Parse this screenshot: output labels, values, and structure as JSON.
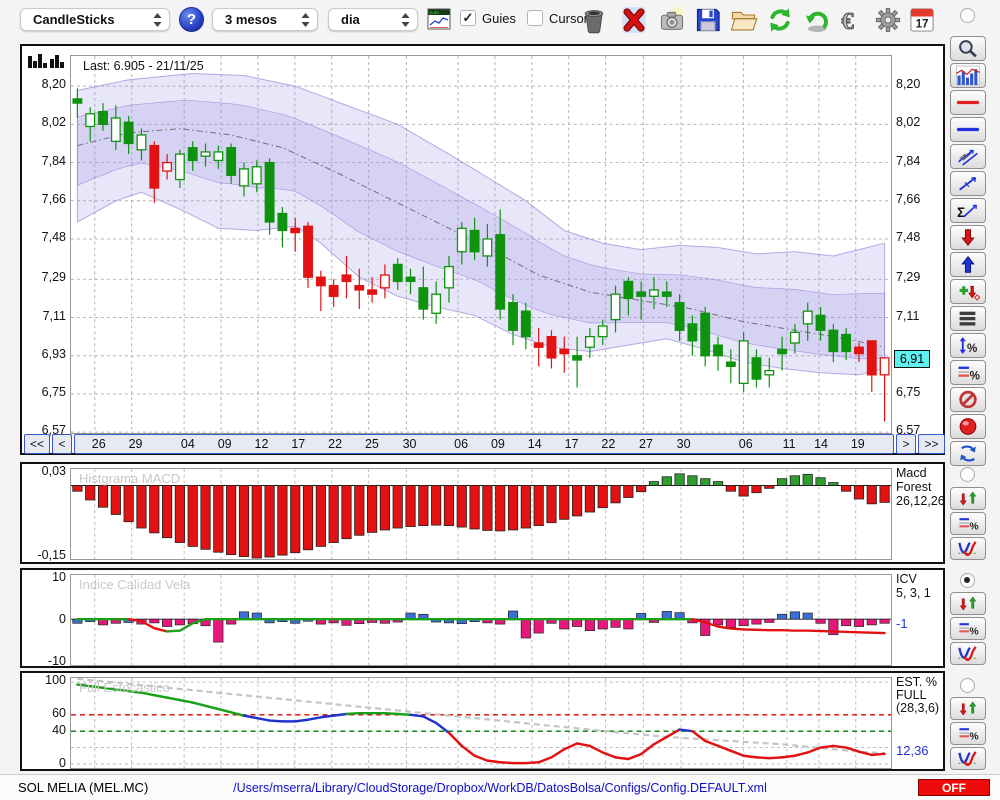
{
  "toolbar": {
    "chart_type": "CandleSticks",
    "help": "?",
    "period": "3 mesos",
    "timeframe": "dia",
    "guies": "Guies",
    "cursor": "Cursor"
  },
  "main_chart": {
    "last_label": "Last: 6.905 - 21/11/25",
    "y_labels": [
      "8,20",
      "8,02",
      "7,84",
      "7,66",
      "7,48",
      "7,29",
      "7,11",
      "6,93",
      "6,75",
      "6,57"
    ],
    "y_values": [
      8.2,
      8.02,
      7.84,
      7.66,
      7.48,
      7.29,
      7.11,
      6.93,
      6.75,
      6.57
    ],
    "badge": "6,91",
    "badge_value": 6.91,
    "nav": {
      "first": "<<",
      "prev": "<",
      "next": ">",
      "last": ">>"
    },
    "dates": [
      [
        "26",
        2.9
      ],
      [
        "29",
        7.4
      ],
      [
        "04",
        13.8
      ],
      [
        "09",
        18.3
      ],
      [
        "12",
        22.8
      ],
      [
        "17",
        27.3
      ],
      [
        "22",
        31.8
      ],
      [
        "25",
        36.3
      ],
      [
        "30",
        40.9
      ],
      [
        "06",
        47.2
      ],
      [
        "09",
        51.7
      ],
      [
        "14",
        56.2
      ],
      [
        "17",
        60.7
      ],
      [
        "22",
        65.2
      ],
      [
        "27",
        69.8
      ],
      [
        "30",
        74.4
      ],
      [
        "06",
        82.0
      ],
      [
        "11",
        87.3
      ],
      [
        "14",
        91.2
      ],
      [
        "19",
        95.7
      ]
    ]
  },
  "panels": {
    "macd": {
      "title": "Histgrama MACD",
      "y_top": "0,03",
      "y_bottom": "-0,15",
      "right": [
        "Macd",
        "Forest",
        "26,12,26"
      ]
    },
    "icv": {
      "title": "Indice Calidad Vela",
      "y_labels": [
        "10",
        "0",
        "-10"
      ],
      "right": [
        "ICV",
        "5, 3, 1"
      ],
      "value": "-1"
    },
    "est": {
      "title": "Full Estocastico",
      "y_labels": [
        "100",
        "60",
        "40",
        "0"
      ],
      "right": [
        "EST. %",
        "FULL",
        "(28,3,6)"
      ],
      "value": "12,36"
    }
  },
  "statusbar": {
    "symbol": "SOL MELIA (MEL.MC)",
    "path": "/Users/mserra/Library/CloudStorage/Dropbox/WorkDB/DatosBolsa/Configs/Config.DEFAULT.xml",
    "off": "OFF"
  },
  "colors": {
    "candle_green": "#0f930f",
    "candle_red": "#e31212",
    "band_fill": "rgba(152,142,226,0.22)",
    "band_edge": "rgba(122,112,205,0.55)",
    "macd_red": "#e31212",
    "macd_green": "#2e9e2e",
    "icv_blue": "#3b6fd4",
    "icv_magenta": "#e6187c",
    "line_green": "#18a018",
    "line_red": "#e31212",
    "line_blue": "#2233cc",
    "signal_gray": "#c4c4c4",
    "guide_red": "#dd0000",
    "guide_green": "#007700",
    "badge_cyan": "#5ff0f0",
    "value_blue": "#2233dd"
  },
  "chart_data": {
    "main": {
      "type": "candlestick",
      "title": "Last: 6.905 - 21/11/25",
      "ylim": [
        6.566,
        8.342
      ],
      "y_ticks": [
        8.2,
        8.02,
        7.84,
        7.66,
        7.48,
        7.29,
        7.11,
        6.93,
        6.75,
        6.57
      ],
      "candles": [
        [
          8.12,
          8.14,
          8.05,
          8.19,
          "gs"
        ],
        [
          8.01,
          8.07,
          7.94,
          8.1,
          "gh"
        ],
        [
          8.02,
          8.08,
          7.99,
          8.12,
          "gs"
        ],
        [
          7.94,
          8.05,
          7.9,
          8.11,
          "gh"
        ],
        [
          7.93,
          8.03,
          7.88,
          8.06,
          "gs"
        ],
        [
          7.9,
          7.97,
          7.85,
          8.0,
          "gh"
        ],
        [
          7.72,
          7.92,
          7.65,
          7.94,
          "rs"
        ],
        [
          7.8,
          7.84,
          7.76,
          7.88,
          "rh"
        ],
        [
          7.76,
          7.88,
          7.72,
          7.9,
          "gh"
        ],
        [
          7.85,
          7.91,
          7.8,
          7.94,
          "gs"
        ],
        [
          7.87,
          7.89,
          7.82,
          7.93,
          "gh"
        ],
        [
          7.85,
          7.89,
          7.81,
          7.92,
          "gh"
        ],
        [
          7.78,
          7.91,
          7.74,
          7.93,
          "gs"
        ],
        [
          7.73,
          7.81,
          7.68,
          7.84,
          "gh"
        ],
        [
          7.74,
          7.82,
          7.7,
          7.85,
          "gh"
        ],
        [
          7.56,
          7.84,
          7.5,
          7.86,
          "gs"
        ],
        [
          7.52,
          7.6,
          7.44,
          7.63,
          "gs"
        ],
        [
          7.51,
          7.53,
          7.42,
          7.58,
          "rs"
        ],
        [
          7.3,
          7.54,
          7.25,
          7.56,
          "rs"
        ],
        [
          7.26,
          7.3,
          7.14,
          7.33,
          "rs"
        ],
        [
          7.21,
          7.26,
          7.16,
          7.29,
          "rs"
        ],
        [
          7.28,
          7.31,
          7.2,
          7.4,
          "rs"
        ],
        [
          7.24,
          7.26,
          7.15,
          7.34,
          "rs"
        ],
        [
          7.22,
          7.24,
          7.18,
          7.3,
          "rs"
        ],
        [
          7.25,
          7.31,
          7.2,
          7.36,
          "rh"
        ],
        [
          7.28,
          7.36,
          7.24,
          7.39,
          "gs"
        ],
        [
          7.28,
          7.3,
          7.22,
          7.34,
          "gs"
        ],
        [
          7.15,
          7.25,
          7.1,
          7.35,
          "gs"
        ],
        [
          7.13,
          7.22,
          7.08,
          7.28,
          "gh"
        ],
        [
          7.25,
          7.35,
          7.18,
          7.4,
          "gh"
        ],
        [
          7.42,
          7.53,
          7.36,
          7.56,
          "gh"
        ],
        [
          7.42,
          7.52,
          7.38,
          7.58,
          "gs"
        ],
        [
          7.4,
          7.48,
          7.35,
          7.55,
          "gh"
        ],
        [
          7.15,
          7.5,
          7.1,
          7.62,
          "gs"
        ],
        [
          7.05,
          7.18,
          6.98,
          7.22,
          "gs"
        ],
        [
          7.02,
          7.14,
          6.96,
          7.18,
          "gs"
        ],
        [
          6.97,
          6.99,
          6.88,
          7.06,
          "rs"
        ],
        [
          6.92,
          7.02,
          6.87,
          7.05,
          "rs"
        ],
        [
          6.94,
          6.96,
          6.85,
          7.02,
          "rs"
        ],
        [
          6.91,
          6.93,
          6.78,
          7.02,
          "gs"
        ],
        [
          6.97,
          7.02,
          6.92,
          7.06,
          "gh"
        ],
        [
          7.02,
          7.07,
          6.98,
          7.1,
          "gh"
        ],
        [
          7.1,
          7.22,
          7.04,
          7.26,
          "gh"
        ],
        [
          7.2,
          7.28,
          7.12,
          7.3,
          "gs"
        ],
        [
          7.21,
          7.23,
          7.1,
          7.28,
          "gs"
        ],
        [
          7.21,
          7.24,
          7.15,
          7.3,
          "gh"
        ],
        [
          7.21,
          7.23,
          7.16,
          7.28,
          "gs"
        ],
        [
          7.05,
          7.18,
          7.0,
          7.22,
          "gs"
        ],
        [
          7.0,
          7.08,
          6.93,
          7.12,
          "gs"
        ],
        [
          6.93,
          7.13,
          6.88,
          7.16,
          "gs"
        ],
        [
          6.93,
          6.98,
          6.86,
          7.02,
          "gs"
        ],
        [
          6.88,
          6.9,
          6.8,
          6.96,
          "gs"
        ],
        [
          6.8,
          7.0,
          6.76,
          7.04,
          "gh"
        ],
        [
          6.82,
          6.92,
          6.78,
          6.96,
          "gs"
        ],
        [
          6.84,
          6.86,
          6.78,
          6.92,
          "gh"
        ],
        [
          6.94,
          6.96,
          6.86,
          7.02,
          "gs"
        ],
        [
          6.99,
          7.04,
          6.94,
          7.08,
          "gh"
        ],
        [
          7.08,
          7.14,
          7.0,
          7.18,
          "gh"
        ],
        [
          7.05,
          7.12,
          7.0,
          7.16,
          "gs"
        ],
        [
          6.95,
          7.05,
          6.9,
          7.08,
          "gs"
        ],
        [
          6.95,
          7.03,
          6.91,
          7.06,
          "gs"
        ],
        [
          6.94,
          6.97,
          6.9,
          6.99,
          "rs"
        ],
        [
          6.84,
          7.0,
          6.76,
          7.0,
          "rs"
        ],
        [
          6.84,
          6.92,
          6.62,
          6.92,
          "rh"
        ]
      ],
      "band_upper_pts": [
        [
          0,
          8.18
        ],
        [
          4,
          8.23
        ],
        [
          9,
          8.26
        ],
        [
          13,
          8.25
        ],
        [
          17,
          8.2
        ],
        [
          21,
          8.11
        ],
        [
          25,
          8.02
        ],
        [
          29,
          7.88
        ],
        [
          32,
          7.77
        ],
        [
          35,
          7.66
        ],
        [
          38,
          7.52
        ],
        [
          41,
          7.46
        ],
        [
          44,
          7.43
        ],
        [
          47,
          7.45
        ],
        [
          50,
          7.44
        ],
        [
          53,
          7.41
        ],
        [
          56,
          7.42
        ],
        [
          59,
          7.4
        ],
        [
          63,
          7.46
        ]
      ],
      "band_lower_pts": [
        [
          0,
          7.56
        ],
        [
          3,
          7.66
        ],
        [
          5,
          7.7
        ],
        [
          8,
          7.62
        ],
        [
          11,
          7.53
        ],
        [
          14,
          7.52
        ],
        [
          17,
          7.54
        ],
        [
          19,
          7.46
        ],
        [
          22,
          7.3
        ],
        [
          25,
          7.21
        ],
        [
          28,
          7.16
        ],
        [
          31,
          7.12
        ],
        [
          34,
          7.03
        ],
        [
          37,
          6.97
        ],
        [
          40,
          6.95
        ],
        [
          43,
          6.98
        ],
        [
          46,
          7.01
        ],
        [
          49,
          6.96
        ],
        [
          52,
          6.9
        ],
        [
          55,
          6.87
        ],
        [
          58,
          6.85
        ],
        [
          61,
          6.84
        ],
        [
          63,
          6.87
        ]
      ],
      "band_mid_pts": [
        [
          0,
          7.92
        ],
        [
          4,
          7.98
        ],
        [
          8,
          8.0
        ],
        [
          12,
          7.97
        ],
        [
          16,
          7.91
        ],
        [
          20,
          7.8
        ],
        [
          24,
          7.68
        ],
        [
          28,
          7.56
        ],
        [
          32,
          7.44
        ],
        [
          36,
          7.31
        ],
        [
          40,
          7.23
        ],
        [
          44,
          7.19
        ],
        [
          48,
          7.15
        ],
        [
          52,
          7.09
        ],
        [
          56,
          7.05
        ],
        [
          60,
          7.01
        ],
        [
          63,
          6.97
        ]
      ]
    },
    "macd": {
      "type": "bar",
      "title": "Histgrama MACD",
      "params": "26,12,26",
      "ylim": [
        -0.152,
        0.034
      ],
      "values": [
        -0.012,
        -0.03,
        -0.045,
        -0.06,
        -0.075,
        -0.088,
        -0.098,
        -0.108,
        -0.118,
        -0.126,
        -0.132,
        -0.138,
        -0.143,
        -0.147,
        -0.15,
        -0.148,
        -0.144,
        -0.139,
        -0.133,
        -0.126,
        -0.118,
        -0.11,
        -0.103,
        -0.097,
        -0.092,
        -0.088,
        -0.085,
        -0.083,
        -0.082,
        -0.083,
        -0.086,
        -0.09,
        -0.093,
        -0.094,
        -0.092,
        -0.088,
        -0.083,
        -0.077,
        -0.07,
        -0.063,
        -0.055,
        -0.046,
        -0.036,
        -0.025,
        -0.013,
        0.008,
        0.018,
        0.024,
        0.02,
        0.014,
        0.008,
        -0.012,
        -0.022,
        -0.015,
        -0.006,
        0.014,
        0.02,
        0.023,
        0.016,
        0.006,
        -0.012,
        -0.028,
        -0.038,
        -0.035
      ]
    },
    "icv": {
      "type": "bar",
      "title": "Indice Calidad Vela",
      "params": "5, 3, 1",
      "ylim": [
        -11.2,
        10.8
      ],
      "last": -1,
      "bars": [
        -1,
        -0.6,
        -1.4,
        -1,
        -0.8,
        -1.2,
        -0.9,
        -1.8,
        -1.4,
        -1.1,
        -1.6,
        -5.6,
        -1.2,
        1.8,
        1.5,
        -0.9,
        -0.6,
        -1,
        -0.5,
        -1.2,
        -0.9,
        -1.5,
        -1.1,
        -0.8,
        -1,
        -0.7,
        1.5,
        1.2,
        -0.7,
        -0.9,
        -1.1,
        -0.6,
        -0.9,
        -1.2,
        2,
        -4.6,
        -3.4,
        -1,
        -2.4,
        -1.8,
        -2.8,
        -2.4,
        -2,
        -2.4,
        1.4,
        -0.8,
        1.9,
        1.6,
        -0.9,
        -4,
        -1.4,
        -2,
        -1.6,
        -1.2,
        -0.8,
        1.2,
        1.8,
        1.5,
        -1,
        -3.8,
        -1.6,
        -1.8,
        -1.4,
        -1
      ],
      "bar_colors": [
        "b",
        "b",
        "m",
        "m",
        "b",
        "m",
        "m",
        "m",
        "m",
        "m",
        "m",
        "m",
        "m",
        "b",
        "b",
        "b",
        "b",
        "b",
        "b",
        "m",
        "m",
        "m",
        "m",
        "m",
        "m",
        "m",
        "b",
        "b",
        "b",
        "b",
        "b",
        "b",
        "m",
        "m",
        "b",
        "m",
        "m",
        "m",
        "m",
        "m",
        "m",
        "m",
        "m",
        "m",
        "b",
        "m",
        "b",
        "b",
        "m",
        "m",
        "m",
        "m",
        "m",
        "m",
        "m",
        "b",
        "b",
        "b",
        "m",
        "m",
        "m",
        "m",
        "m",
        "m"
      ],
      "line": [
        0,
        0,
        0,
        0,
        0,
        -0.5,
        -2.2,
        -3,
        -2.8,
        -1,
        0,
        0,
        0,
        0,
        0,
        0,
        0,
        0,
        0,
        0,
        0,
        0,
        0,
        0,
        0,
        0,
        0,
        0,
        0,
        0,
        0,
        0,
        0,
        0,
        0,
        0,
        0,
        0,
        0,
        0,
        0,
        0,
        0,
        0,
        0,
        0,
        0,
        0,
        0,
        -0.8,
        -1.8,
        -2.3,
        -2.5,
        -2.6,
        -2.7,
        -2.7,
        -2.8,
        -2.8,
        -2.9,
        -3,
        -3.1,
        -3.2,
        -3.3,
        -3.4
      ]
    },
    "stoch": {
      "type": "line",
      "title": "Full Estocastico",
      "params": "(28,3,6)",
      "ylim": [
        -5,
        105
      ],
      "last": 12.36,
      "guides": [
        {
          "v": 60,
          "color": "red"
        },
        {
          "v": 40,
          "color": "green"
        }
      ],
      "gray_grid": [
        100,
        20,
        0
      ],
      "k": [
        97,
        95,
        93,
        91,
        89,
        87,
        84,
        81,
        78,
        75,
        71,
        67,
        63,
        59,
        56,
        53,
        52,
        52,
        54,
        57,
        59,
        61,
        62,
        62,
        62,
        61,
        60,
        58,
        50,
        38,
        22,
        10,
        4,
        2,
        1,
        1,
        2,
        8,
        18,
        25,
        22,
        14,
        8,
        6,
        12,
        24,
        33,
        42,
        40,
        28,
        22,
        16,
        10,
        8,
        7,
        8,
        10,
        14,
        20,
        22,
        20,
        15,
        11,
        12.36
      ],
      "d": [
        104,
        102.5,
        100.9,
        99.4,
        97.8,
        96.3,
        94.7,
        93.2,
        91.6,
        90.1,
        88.5,
        87,
        85.4,
        83.9,
        82.3,
        80.8,
        79.2,
        77.7,
        76.1,
        74.6,
        73,
        71.5,
        69.9,
        68.4,
        66.8,
        65.3,
        63.7,
        62.2,
        60.6,
        59.1,
        57.5,
        56,
        54.4,
        52.9,
        51.3,
        49.8,
        48,
        46.5,
        45,
        43.5,
        42,
        40.5,
        39,
        37.5,
        36,
        34.5,
        33,
        32,
        31,
        30,
        29,
        28,
        27,
        26,
        25,
        24,
        22.5,
        21,
        19.5,
        18,
        16.5,
        15,
        14,
        13
      ]
    }
  }
}
